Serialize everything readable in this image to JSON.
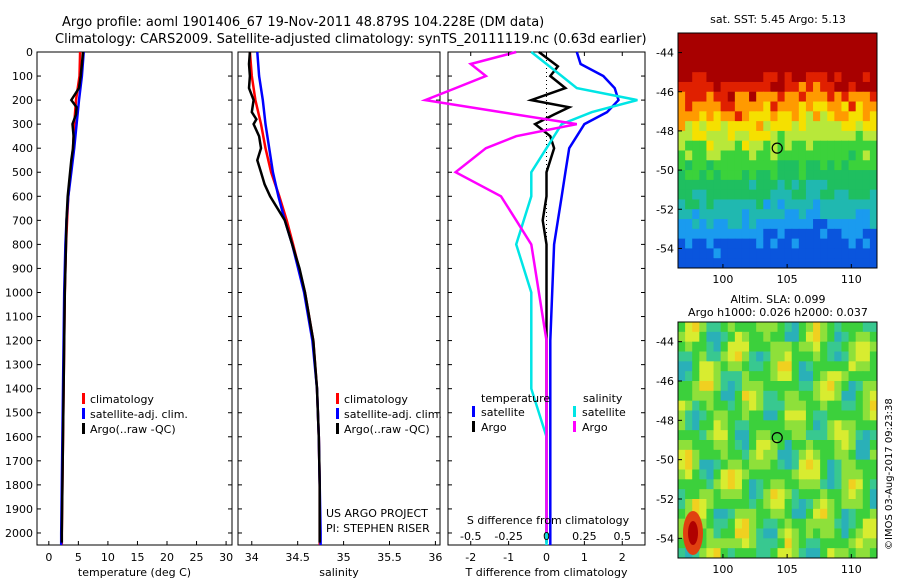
{
  "header": {
    "line1": "Argo profile: aoml 1901406_67 19-Nov-2011 48.879S 104.228E (DM data)",
    "line2": "Climatology: CARS2009. Satellite-adjusted climatology: synTS_20111119.nc (0.63d earlier)"
  },
  "colors": {
    "climatology": "#ff0000",
    "satellite": "#0000ff",
    "argo": "#000000",
    "satellite_salinity": "#00e5e5",
    "argo_salinity": "#ff00ff"
  },
  "depth_ticks": [
    "0",
    "100",
    "200",
    "300",
    "400",
    "500",
    "600",
    "700",
    "800",
    "900",
    "1000",
    "1100",
    "1200",
    "1300",
    "1400",
    "1500",
    "1600",
    "1700",
    "1800",
    "1900",
    "2000"
  ],
  "legend_profiles": [
    "climatology",
    "satellite-adj. clim.",
    "Argo(..raw -QC)"
  ],
  "project_text": [
    "US ARGO PROJECT",
    "PI: STEPHEN RISER"
  ],
  "diff_legend": {
    "temperature_header": "temperature",
    "salinity_header": "salinity",
    "temperature_items": [
      "satellite",
      "Argo"
    ],
    "salinity_items": [
      "satellite",
      "Argo"
    ]
  },
  "diff_top_ticks": [
    "-0.5",
    "-0.25",
    "0",
    "0.25",
    "0.5"
  ],
  "diff_top_title": "S difference from climatology",
  "maps": {
    "sst_title": "sat. SST: 5.45 Argo: 5.13",
    "sla_title1": "Altim. SLA: 0.099",
    "sla_title2": "Argo h1000: 0.026 h2000: 0.037",
    "lat_ticks": [
      "-44",
      "-46",
      "-48",
      "-50",
      "-52",
      "-54"
    ],
    "lon_ticks": [
      "100",
      "105",
      "110"
    ],
    "lat_range": [
      -55,
      -43
    ],
    "lon_range": [
      96.5,
      112
    ],
    "profile_position": {
      "lat": -48.879,
      "lon": 104.228
    },
    "watermark": "©IMOS 03-Aug-2017 09:23:38"
  },
  "chart_data": [
    {
      "type": "line",
      "xlabel": "temperature (deg C)",
      "x_ticks": [
        "0",
        "5",
        "10",
        "15",
        "20",
        "25",
        "30"
      ],
      "xlim": [
        -2,
        31
      ],
      "ylim": [
        2050,
        0
      ],
      "series": [
        {
          "name": "climatology",
          "depth": [
            0,
            100,
            200,
            300,
            400,
            500,
            600,
            700,
            800,
            1000,
            1200,
            1400,
            1600,
            1800,
            2000,
            2050
          ],
          "values": [
            5.3,
            5.2,
            4.6,
            4.3,
            4.1,
            3.7,
            3.3,
            3.1,
            2.9,
            2.7,
            2.6,
            2.5,
            2.4,
            2.3,
            2.2,
            2.2
          ]
        },
        {
          "name": "satellite-adj. clim.",
          "depth": [
            0,
            100,
            200,
            300,
            400,
            500,
            600,
            700,
            800,
            1000,
            1200,
            1400,
            1600,
            1800,
            2000,
            2050
          ],
          "values": [
            5.9,
            5.6,
            5.1,
            4.7,
            4.3,
            3.8,
            3.3,
            3.0,
            2.8,
            2.6,
            2.5,
            2.4,
            2.3,
            2.2,
            2.1,
            2.1
          ]
        },
        {
          "name": "Argo(..raw -QC)",
          "depth": [
            0,
            50,
            100,
            150,
            200,
            230,
            260,
            300,
            350,
            400,
            450,
            500,
            550,
            600,
            700,
            800,
            1000,
            1200,
            1400,
            1600,
            1800,
            2000,
            2040
          ],
          "values": [
            5.8,
            5.6,
            5.4,
            5.1,
            3.8,
            4.7,
            4.6,
            4.0,
            4.2,
            4.1,
            3.8,
            3.6,
            3.4,
            3.2,
            3.0,
            2.9,
            2.7,
            2.6,
            2.5,
            2.4,
            2.3,
            2.2,
            2.2
          ]
        }
      ]
    },
    {
      "type": "line",
      "xlabel": "salinity",
      "x_ticks": [
        "34",
        "34.5",
        "35",
        "35.5",
        "36"
      ],
      "xlim": [
        33.85,
        36.05
      ],
      "ylim": [
        2050,
        0
      ],
      "series": [
        {
          "name": "climatology",
          "depth": [
            0,
            100,
            200,
            300,
            400,
            500,
            600,
            700,
            800,
            1000,
            1200,
            1400,
            1600,
            1800,
            2000,
            2050
          ],
          "values": [
            33.98,
            34.0,
            34.04,
            34.1,
            34.15,
            34.21,
            34.3,
            34.38,
            34.45,
            34.58,
            34.67,
            34.71,
            34.73,
            34.74,
            34.74,
            34.74
          ]
        },
        {
          "name": "satellite-adj. clim.",
          "depth": [
            0,
            100,
            200,
            300,
            400,
            500,
            600,
            700,
            800,
            1000,
            1200,
            1400,
            1600,
            1800,
            2000,
            2050
          ],
          "values": [
            34.06,
            34.08,
            34.12,
            34.15,
            34.19,
            34.23,
            34.29,
            34.36,
            34.44,
            34.57,
            34.66,
            34.71,
            34.73,
            34.74,
            34.75,
            34.75
          ]
        },
        {
          "name": "Argo(..raw -QC)",
          "depth": [
            0,
            50,
            100,
            150,
            200,
            250,
            280,
            300,
            350,
            400,
            450,
            500,
            550,
            600,
            700,
            800,
            900,
            1000,
            1200,
            1400,
            1600,
            1800,
            2000,
            2040
          ],
          "values": [
            33.98,
            33.97,
            33.98,
            33.97,
            34.02,
            34.0,
            34.05,
            34.02,
            34.08,
            34.1,
            34.06,
            34.1,
            34.14,
            34.2,
            34.36,
            34.44,
            34.52,
            34.58,
            34.67,
            34.71,
            34.73,
            34.74,
            34.74,
            34.74
          ]
        }
      ]
    },
    {
      "type": "line",
      "xlabel": "T difference from climatology",
      "x_ticks": [
        "-2",
        "-1",
        "0",
        "1",
        "2"
      ],
      "xlim": [
        -2.6,
        2.6
      ],
      "ylim": [
        2050,
        0
      ],
      "series": [
        {
          "name": "temperature satellite",
          "depth": [
            0,
            50,
            100,
            150,
            200,
            250,
            300,
            350,
            400,
            500,
            600,
            700,
            800,
            1000,
            1200,
            1400,
            1600,
            1800,
            2000,
            2050
          ],
          "values": [
            0.8,
            0.9,
            1.5,
            1.8,
            1.9,
            1.6,
            1.0,
            0.8,
            0.6,
            0.5,
            0.4,
            0.3,
            0.2,
            0.15,
            0.1,
            0.1,
            0.1,
            0.1,
            0.1,
            0.1
          ]
        },
        {
          "name": "temperature Argo",
          "depth": [
            0,
            60,
            100,
            150,
            200,
            230,
            260,
            300,
            350,
            400,
            500,
            600,
            700,
            800,
            1000,
            1200,
            1400,
            1600,
            1800,
            2000,
            2040
          ],
          "values": [
            -0.2,
            0.3,
            0.1,
            0.5,
            -0.4,
            0.6,
            0.2,
            -0.3,
            0.1,
            0.2,
            0.0,
            0.0,
            -0.1,
            0.0,
            0.0,
            0.0,
            0.0,
            0.0,
            0.0,
            0.0,
            0.0
          ]
        },
        {
          "name": "salinity satellite",
          "depth": [
            0,
            50,
            100,
            150,
            200,
            250,
            300,
            400,
            500,
            600,
            800,
            1000,
            1200,
            1400,
            1600,
            1800,
            2000,
            2050
          ],
          "values": [
            -0.1,
            0.0,
            0.1,
            0.2,
            0.6,
            0.3,
            0.1,
            0.0,
            -0.1,
            -0.1,
            -0.2,
            -0.1,
            -0.1,
            -0.1,
            0.0,
            0.0,
            0.0,
            0.0
          ]
        },
        {
          "name": "salinity Argo",
          "depth": [
            0,
            50,
            100,
            150,
            200,
            250,
            300,
            350,
            400,
            500,
            600,
            700,
            800,
            1000,
            1200,
            1400,
            1600,
            1800,
            2000
          ],
          "values": [
            -0.2,
            -0.5,
            -0.4,
            -0.6,
            -0.8,
            -0.3,
            0.2,
            -0.2,
            -0.4,
            -0.6,
            -0.3,
            -0.2,
            -0.1,
            -0.05,
            0.0,
            0.0,
            0.0,
            0.0,
            0.0
          ]
        }
      ]
    },
    {
      "type": "heatmap",
      "title": "sat. SST: 5.45 Argo: 5.13",
      "xlim": [
        96.5,
        112
      ],
      "ylim": [
        -55,
        -43
      ],
      "profile_marker": {
        "lat": -48.879,
        "lon": 104.228
      }
    },
    {
      "type": "heatmap",
      "title": "Altim. SLA: 0.099",
      "xlim": [
        96.5,
        112
      ],
      "ylim": [
        -55,
        -43
      ],
      "profile_marker": {
        "lat": -48.879,
        "lon": 104.228
      }
    }
  ]
}
